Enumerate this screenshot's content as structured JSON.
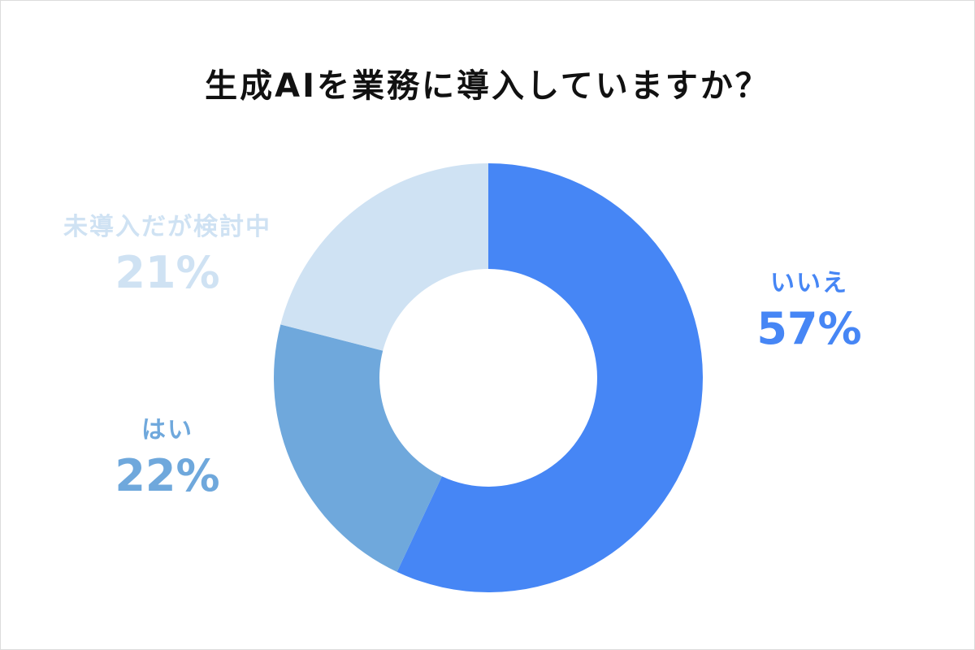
{
  "chart_data": {
    "type": "pie",
    "title": "生成AIを業務に導入していますか？",
    "style": "donut",
    "slices": [
      {
        "label": "いいえ",
        "value": 57,
        "display": "57%",
        "color": "#4686f5",
        "text_color": "#4686f5"
      },
      {
        "label": "はい",
        "value": 22,
        "display": "22%",
        "color": "#6fa8dc",
        "text_color": "#6fa8dc"
      },
      {
        "label": "未導入だが検討中",
        "value": 21,
        "display": "21%",
        "color": "#cfe2f3",
        "text_color": "#cfe2f3"
      }
    ],
    "start_angle": "12 o'clock",
    "direction": "clockwise",
    "legend": "none"
  }
}
